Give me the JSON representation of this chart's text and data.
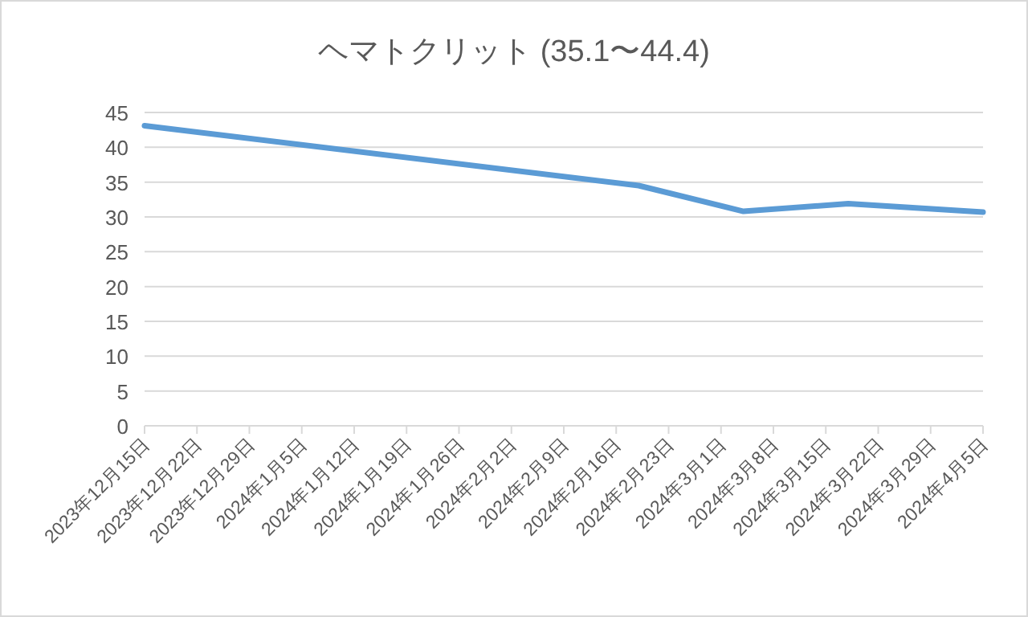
{
  "chart_data": {
    "type": "line",
    "title": "ヘマトクリット (35.1〜44.4)",
    "x": [
      "2023-12-15",
      "2024-02-19",
      "2024-03-04",
      "2024-03-18",
      "2024-04-05"
    ],
    "series": [
      {
        "color": "#5b9bd5",
        "values": [
          43.1,
          34.5,
          30.8,
          31.9,
          30.7
        ]
      }
    ],
    "xlim": [
      "2023-12-15",
      "2024-04-05"
    ],
    "xticks": [
      {
        "value": "2023-12-15",
        "label": "2023年12月15日"
      },
      {
        "value": "2023-12-22",
        "label": "2023年12月22日"
      },
      {
        "value": "2023-12-29",
        "label": "2023年12月29日"
      },
      {
        "value": "2024-01-05",
        "label": "2024年1月5日"
      },
      {
        "value": "2024-01-12",
        "label": "2024年1月12日"
      },
      {
        "value": "2024-01-19",
        "label": "2024年1月19日"
      },
      {
        "value": "2024-01-26",
        "label": "2024年1月26日"
      },
      {
        "value": "2024-02-02",
        "label": "2024年2月2日"
      },
      {
        "value": "2024-02-09",
        "label": "2024年2月9日"
      },
      {
        "value": "2024-02-16",
        "label": "2024年2月16日"
      },
      {
        "value": "2024-02-23",
        "label": "2024年2月23日"
      },
      {
        "value": "2024-03-01",
        "label": "2024年3月1日"
      },
      {
        "value": "2024-03-08",
        "label": "2024年3月8日"
      },
      {
        "value": "2024-03-15",
        "label": "2024年3月15日"
      },
      {
        "value": "2024-03-22",
        "label": "2024年3月22日"
      },
      {
        "value": "2024-03-29",
        "label": "2024年3月29日"
      },
      {
        "value": "2024-04-05",
        "label": "2024年4月5日"
      }
    ],
    "ylim": [
      0,
      45
    ],
    "yticks": [
      0,
      5,
      10,
      15,
      20,
      25,
      30,
      35,
      40,
      45
    ],
    "grid": "y",
    "marker": "none",
    "line_style": "solid"
  }
}
